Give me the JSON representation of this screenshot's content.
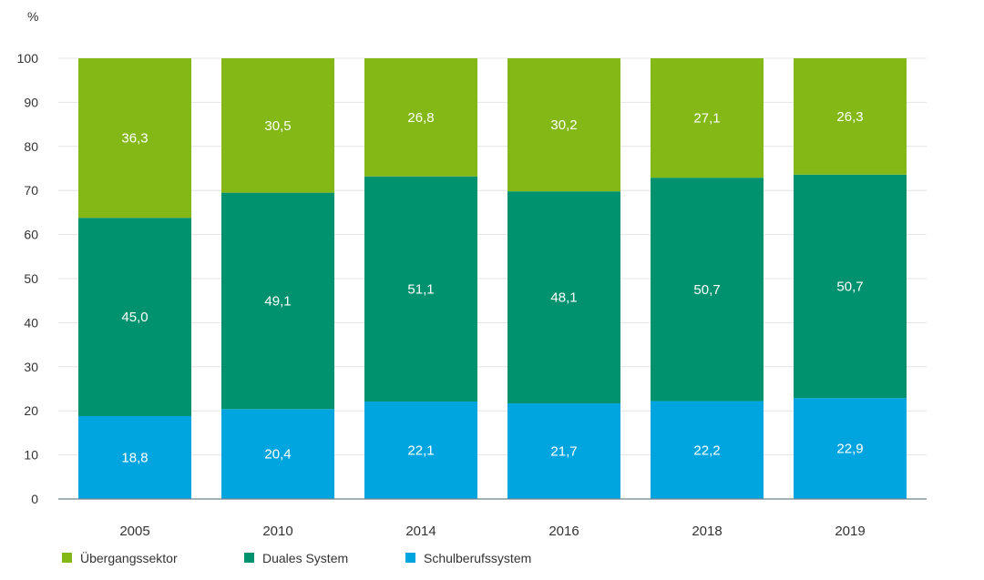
{
  "chart_data": {
    "type": "bar",
    "stacked": true,
    "unit": "%",
    "categories": [
      "2005",
      "2010",
      "2014",
      "2016",
      "2018",
      "2019"
    ],
    "series": [
      {
        "name": "Schulberufssystem",
        "color": "#00a5df",
        "values": [
          18.8,
          20.4,
          22.1,
          21.7,
          22.2,
          22.9
        ],
        "labels": [
          "18,8",
          "20,4",
          "22,1",
          "21,7",
          "22,2",
          "22,9"
        ]
      },
      {
        "name": "Duales System",
        "color": "#00926e",
        "values": [
          45.0,
          49.1,
          51.1,
          48.1,
          50.7,
          50.7
        ],
        "labels": [
          "45,0",
          "49,1",
          "51,1",
          "48,1",
          "50,7",
          "50,7"
        ]
      },
      {
        "name": "Übergangssektor",
        "color": "#84b817",
        "values": [
          36.3,
          30.5,
          26.8,
          30.2,
          27.1,
          26.3
        ],
        "labels": [
          "36,3",
          "30,5",
          "26,8",
          "30,2",
          "27,1",
          "26,3"
        ]
      }
    ],
    "legend_order": [
      "Übergangssektor",
      "Duales System",
      "Schulberufssystem"
    ],
    "ylim": [
      0,
      100
    ],
    "yticks": [
      "0",
      "10",
      "20",
      "30",
      "40",
      "50",
      "60",
      "70",
      "80",
      "90",
      "100"
    ],
    "grid": true,
    "legend_position": "bottom-left"
  }
}
